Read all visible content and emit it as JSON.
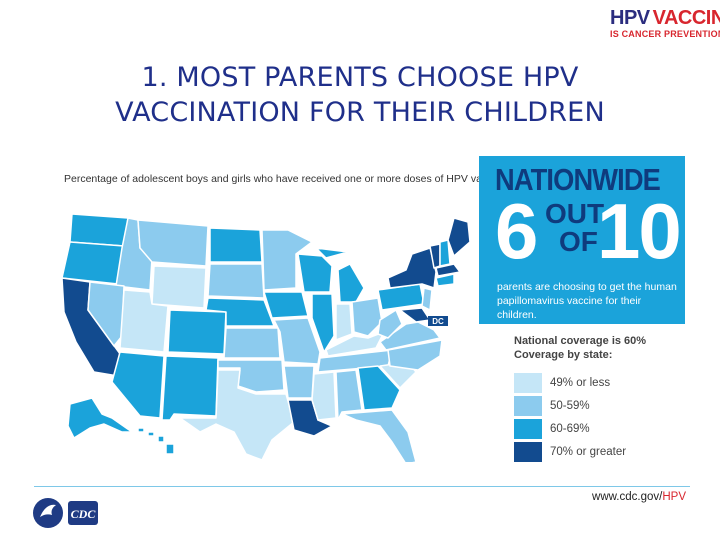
{
  "logo": {
    "line1_a": "HPV",
    "line1_b": "VACCINE",
    "line2": "IS CANCER PREVENTION"
  },
  "title": {
    "line1": "1. MOST PARENTS CHOOSE HPV",
    "line2": "VACCINATION FOR THEIR CHILDREN"
  },
  "map": {
    "caption": "Percentage of adolescent boys and girls who have received one or more doses of HPV vaccine*",
    "dc_label": "DC"
  },
  "panel": {
    "heading": "NATIONWIDE",
    "number_a": "6",
    "word_out": "OUT",
    "word_of": "OF",
    "number_b": "10",
    "text": "parents are choosing to get the human papillomavirus vaccine for their children."
  },
  "legend": {
    "title_line1": "National coverage is 60%",
    "title_line2": "Coverage by state:",
    "items": [
      {
        "label": "49% or less",
        "color": "#c5e6f7"
      },
      {
        "label": "50-59%",
        "color": "#8ccbee"
      },
      {
        "label": "60-69%",
        "color": "#1ba3da"
      },
      {
        "label": "70% or greater",
        "color": "#124b8f"
      }
    ]
  },
  "footer": {
    "url_prefix": "www.cdc.gov/",
    "url_highlight": "HPV",
    "cdc_text": "CDC"
  },
  "colors": {
    "title": "#1f2f8a",
    "panel_bg": "#1ba3da",
    "panel_dark": "#0f3b7d",
    "accent_red": "#d8262e"
  }
}
